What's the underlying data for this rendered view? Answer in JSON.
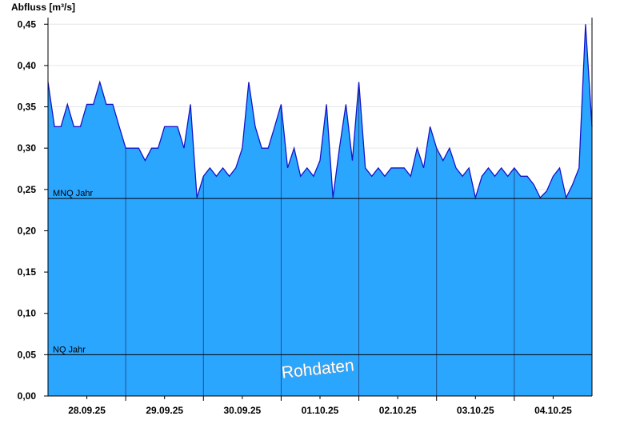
{
  "chart_data": {
    "type": "area",
    "y_label": "Abfluss [m³/s]",
    "watermark": "Rohdaten",
    "color": "#2ba6ff",
    "line_color": "#1414c8",
    "grid": true,
    "xlim": [
      0,
      168
    ],
    "xgrid": [
      24,
      48,
      72,
      96,
      120,
      144
    ],
    "xticks": [
      {
        "value": 12,
        "label": "28.09.25"
      },
      {
        "value": 36,
        "label": "29.09.25"
      },
      {
        "value": 60,
        "label": "30.09.25"
      },
      {
        "value": 84,
        "label": "01.10.25"
      },
      {
        "value": 108,
        "label": "02.10.25"
      },
      {
        "value": 132,
        "label": "03.10.25"
      },
      {
        "value": 156,
        "label": "04.10.25"
      }
    ],
    "ylim": [
      0,
      0.458
    ],
    "yticks": [
      {
        "value": 0,
        "label": "0,00"
      },
      {
        "value": 0.05,
        "label": "0,05"
      },
      {
        "value": 0.1,
        "label": "0,10"
      },
      {
        "value": 0.15,
        "label": "0,15"
      },
      {
        "value": 0.2,
        "label": "0,20"
      },
      {
        "value": 0.25,
        "label": "0,25"
      },
      {
        "value": 0.3,
        "label": "0,30"
      },
      {
        "value": 0.35,
        "label": "0,35"
      },
      {
        "value": 0.4,
        "label": "0,40"
      },
      {
        "value": 0.45,
        "label": "0,45"
      }
    ],
    "reference_lines": [
      {
        "label": "MNQ Jahr",
        "value": 0.239
      },
      {
        "label": "NQ Jahr",
        "value": 0.05
      }
    ],
    "x": [
      0,
      2,
      4,
      6,
      8,
      10,
      12,
      14,
      16,
      18,
      20,
      22,
      24,
      26,
      28,
      30,
      32,
      34,
      36,
      38,
      40,
      42,
      44,
      46,
      48,
      50,
      52,
      54,
      56,
      58,
      60,
      62,
      64,
      66,
      68,
      70,
      72,
      74,
      76,
      78,
      80,
      82,
      84,
      86,
      88,
      90,
      92,
      94,
      96,
      98,
      100,
      102,
      104,
      106,
      108,
      110,
      112,
      114,
      116,
      118,
      120,
      122,
      124,
      126,
      128,
      130,
      132,
      134,
      136,
      138,
      140,
      142,
      144,
      146,
      148,
      150,
      152,
      154,
      156,
      158,
      160,
      162,
      164,
      166,
      168
    ],
    "values": [
      0.38,
      0.326,
      0.326,
      0.353,
      0.326,
      0.326,
      0.353,
      0.353,
      0.38,
      0.353,
      0.353,
      0.326,
      0.3,
      0.3,
      0.3,
      0.285,
      0.3,
      0.3,
      0.326,
      0.326,
      0.326,
      0.3,
      0.353,
      0.24,
      0.266,
      0.276,
      0.266,
      0.276,
      0.266,
      0.276,
      0.3,
      0.38,
      0.326,
      0.3,
      0.3,
      0.326,
      0.353,
      0.276,
      0.3,
      0.266,
      0.276,
      0.266,
      0.285,
      0.353,
      0.24,
      0.3,
      0.353,
      0.285,
      0.38,
      0.276,
      0.266,
      0.276,
      0.266,
      0.276,
      0.276,
      0.276,
      0.266,
      0.3,
      0.276,
      0.326,
      0.3,
      0.285,
      0.3,
      0.276,
      0.266,
      0.276,
      0.24,
      0.266,
      0.276,
      0.266,
      0.276,
      0.266,
      0.276,
      0.266,
      0.266,
      0.256,
      0.24,
      0.248,
      0.266,
      0.276,
      0.24,
      0.256,
      0.276,
      0.45,
      0.326
    ]
  }
}
